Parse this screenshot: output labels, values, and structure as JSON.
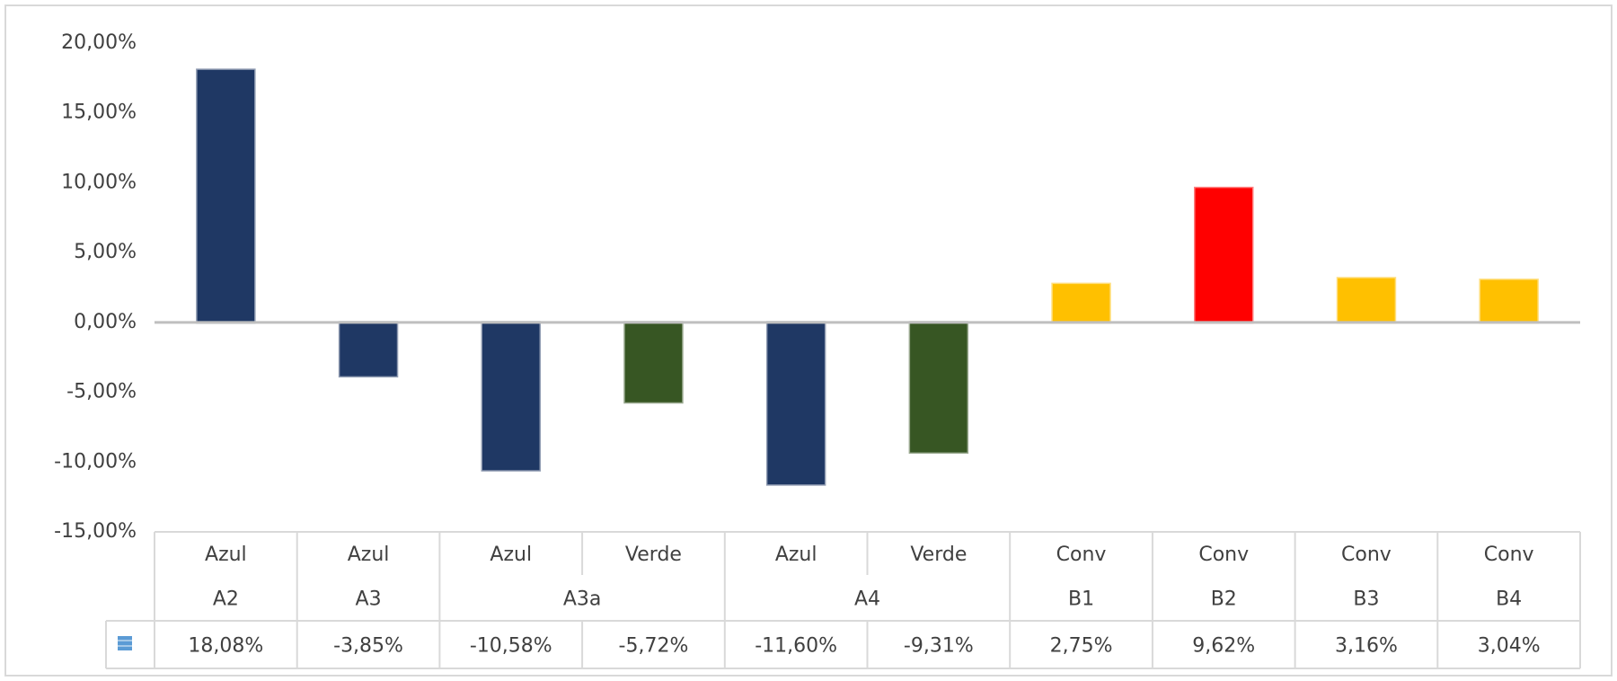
{
  "chart_data": {
    "type": "bar",
    "categories": [
      "Azul",
      "Azul",
      "Azul",
      "Verde",
      "Azul",
      "Verde",
      "Conv",
      "Conv",
      "Conv",
      "Conv"
    ],
    "groups": [
      {
        "label": "A2",
        "span": 1
      },
      {
        "label": "A3",
        "span": 1
      },
      {
        "label": "A3a",
        "span": 2
      },
      {
        "label": "A4",
        "span": 2
      },
      {
        "label": "B1",
        "span": 1
      },
      {
        "label": "B2",
        "span": 1
      },
      {
        "label": "B3",
        "span": 1
      },
      {
        "label": "B4",
        "span": 1
      }
    ],
    "values": [
      18.08,
      -3.85,
      -10.58,
      -5.72,
      -11.6,
      -9.31,
      2.75,
      9.62,
      3.16,
      3.04
    ],
    "value_labels": [
      "18,08%",
      "-3,85%",
      "-10,58%",
      "-5,72%",
      "-11,60%",
      "-9,31%",
      "2,75%",
      "9,62%",
      "3,16%",
      "3,04%"
    ],
    "colors": [
      "#1f3864",
      "#1f3864",
      "#1f3864",
      "#375623",
      "#1f3864",
      "#375623",
      "#ffc000",
      "#ff0000",
      "#ffc000",
      "#ffc000"
    ],
    "ylim": [
      -15,
      20
    ],
    "yticks": [
      {
        "value": -15,
        "label": "-15,00%"
      },
      {
        "value": -10,
        "label": "-10,00%"
      },
      {
        "value": -5,
        "label": "-5,00%"
      },
      {
        "value": 0,
        "label": "0,00%"
      },
      {
        "value": 5,
        "label": "5,00%"
      },
      {
        "value": 10,
        "label": "10,00%"
      },
      {
        "value": 15,
        "label": "15,00%"
      },
      {
        "value": 20,
        "label": "20,00%"
      }
    ],
    "grid": false
  }
}
